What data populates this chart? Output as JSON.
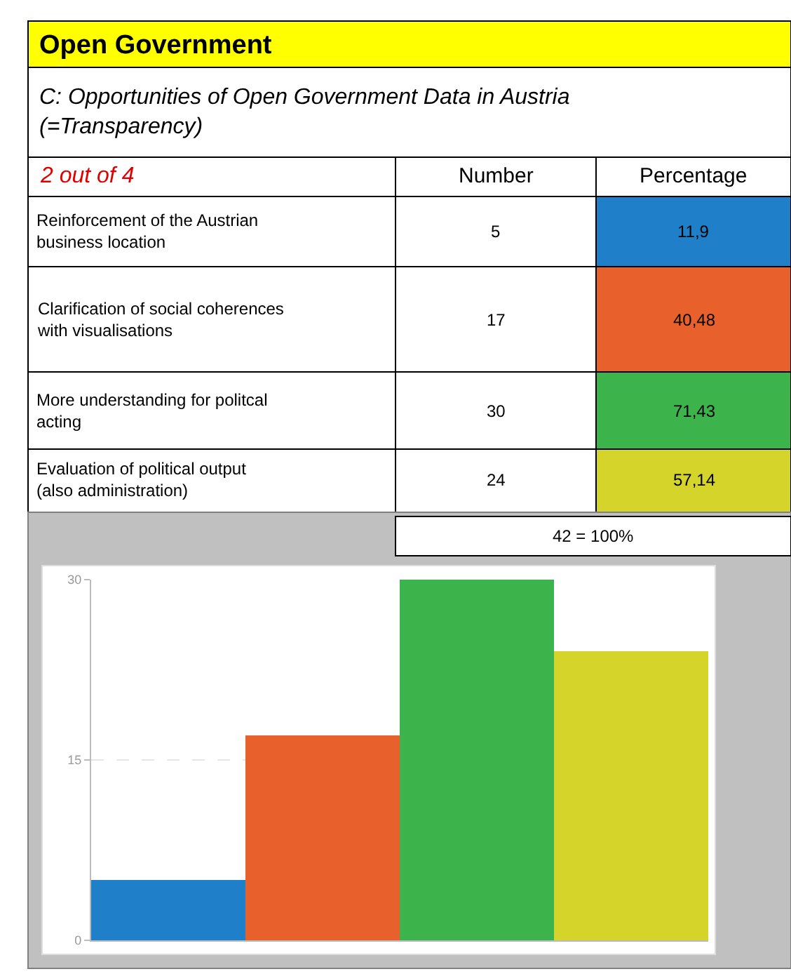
{
  "chart_data": {
    "type": "bar",
    "title": "Open Government",
    "subtitle": "C: Opportunities of Open Government Data in Austria (=Transparency)",
    "categories": [
      null,
      null,
      null,
      null
    ],
    "values": [
      5,
      17,
      30,
      24
    ],
    "colors": [
      "#1f7fc8",
      "#e8602c",
      "#3cb44b",
      "#d4d42a"
    ],
    "annotations": [
      "2 out of 4",
      "Number",
      "Percentage",
      "Reinforcement of the Austrian business location",
      "5",
      "11,9",
      "Clarification of social coherences with visualisations",
      "17",
      "40,48",
      "More understanding for politcal acting",
      "30",
      "71,43",
      "Evaluation of political output (also administration)",
      "24",
      "57,14",
      "42 = 100%"
    ],
    "ylim": [
      0,
      30
    ],
    "yticks": [
      0,
      15,
      30
    ],
    "grid": "y",
    "tick_labels": "y"
  }
}
